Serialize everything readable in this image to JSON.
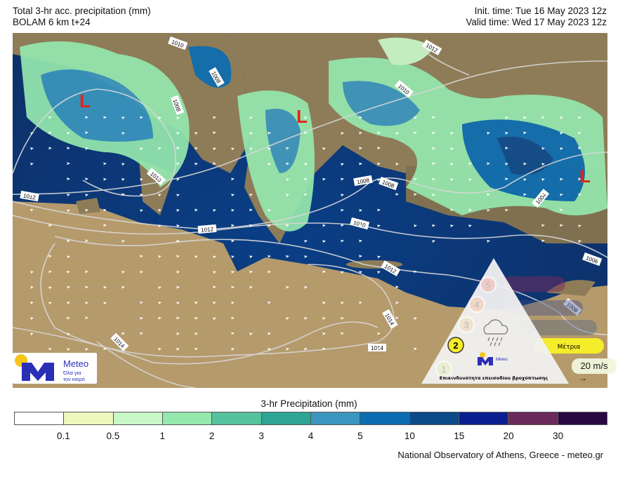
{
  "header": {
    "title": "Total 3-hr acc. precipitation (mm)",
    "subtitle": "BOLAM 6 km t+24",
    "init_time": "Init. time: Tue 16 May 2023 12z",
    "valid_time": "Valid time: Wed 17 May 2023 12z"
  },
  "map": {
    "low_marker": "L",
    "low_color": "#e0241b",
    "isobar_labels": [
      "1010",
      "1008",
      "1008",
      "1010",
      "1012",
      "1012",
      "1008",
      "1008",
      "1010",
      "1012",
      "1014",
      "1014",
      "1014",
      "1012",
      "1010",
      "1004",
      "1006",
      "1008"
    ],
    "sea_color": "#0e3a7a",
    "land_color": "#8a7a55"
  },
  "logo": {
    "brand": "Meteo",
    "tagline_1": "Όλα για",
    "tagline_2": "τον καιρό",
    "color": "#2a2fb8",
    "sun_color": "#f5c518"
  },
  "hazard": {
    "levels": [
      "1",
      "2",
      "3",
      "4",
      "5"
    ],
    "active_level": "2",
    "active_label": "Μέτρια",
    "caption": "Επικινδυνότητα επεισοδίου βροχόπτωσης",
    "icon": "rain-cloud-icon"
  },
  "wind_reference": {
    "label": "20 m/s",
    "icon": "arrow-right-icon"
  },
  "colorbar": {
    "title": "3-hr Precipitation (mm)",
    "ticks": [
      "0.1",
      "0.5",
      "1",
      "2",
      "3",
      "4",
      "5",
      "10",
      "15",
      "20",
      "30"
    ],
    "colors": [
      "#ffffff",
      "#eef7bd",
      "#c9f7c8",
      "#95e8ae",
      "#55c29e",
      "#2ea494",
      "#3a96be",
      "#0b6cb0",
      "#0c4a8a",
      "#0c1f90",
      "#6a2a5c",
      "#2a0841"
    ]
  },
  "credit": "National Observatory of Athens, Greece - meteo.gr"
}
